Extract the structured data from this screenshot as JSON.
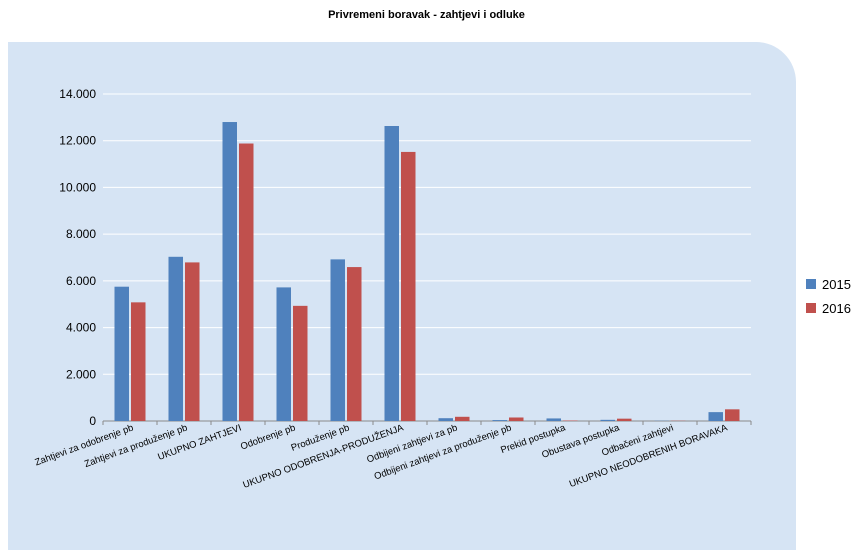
{
  "chart_data": {
    "type": "bar",
    "title": "Privremeni boravak - zahtjevi i odluke",
    "categories": [
      "Zahtjevi za odobrenje pb",
      "Zahtjevi za produženje pb",
      "UKUPNO ZAHTJEVI",
      "Odobrenje pb",
      "Produženje pb",
      "UKUPNO ODOBRENJA-PRODUŽENJA",
      "Odbijeni zahtjevi za pb",
      "Odbijeni zahtjevi za produženje pb",
      "Prekid postupka",
      "Obustava postupka",
      "Odbačeni zahtjevi",
      "UKUPNO NEODOBRENIH BORAVAKA"
    ],
    "series": [
      {
        "name": "2015",
        "color": "#4f81bd",
        "values": [
          5750,
          7030,
          12800,
          5720,
          6920,
          12630,
          120,
          40,
          110,
          50,
          10,
          380
        ]
      },
      {
        "name": "2016",
        "color": "#c0504d",
        "values": [
          5080,
          6790,
          11880,
          4930,
          6590,
          11520,
          180,
          150,
          20,
          100,
          10,
          500
        ]
      }
    ],
    "ylim": [
      0,
      14000
    ],
    "yticks": [
      0,
      2000,
      4000,
      6000,
      8000,
      10000,
      12000,
      14000
    ],
    "ytick_labels": [
      "0",
      "2.000",
      "4.000",
      "6.000",
      "8.000",
      "10.000",
      "12.000",
      "14.000"
    ],
    "grid": true,
    "legend_position": "right",
    "xlabel": "",
    "ylabel": ""
  }
}
